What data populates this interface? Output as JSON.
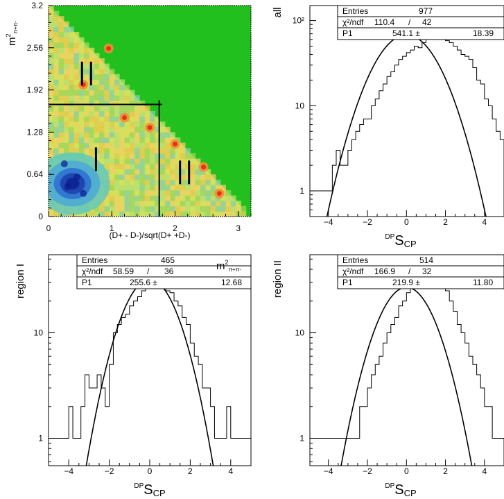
{
  "colors": {
    "heat_background": "#22c01e",
    "heat_low": "#0a1e8c",
    "heat_mid": "#5ec8c0",
    "heat_high": "#e83020",
    "axis": "#000000"
  },
  "chart_data": [
    {
      "id": "dalitz",
      "type": "heatmap",
      "title": "",
      "xlabel": "(D+ - D-)/sqrt(D+ +D-)",
      "ylabel": "m²π+π-",
      "xlim": [
        0,
        3.2
      ],
      "ylim": [
        0,
        3.2
      ],
      "x_ticks": [
        "0",
        "1",
        "2",
        "3"
      ],
      "y_ticks": [
        "0",
        "0.64",
        "1.28",
        "1.92",
        "2.56",
        "3.2"
      ],
      "region_boundary": {
        "x": 1.75,
        "y": 1.7
      },
      "region_markers": [
        {
          "label": "I",
          "x": 0.75,
          "y": 0.87
        },
        {
          "label": "II",
          "x": 0.6,
          "y": 2.17
        },
        {
          "label": "II",
          "x": 2.15,
          "y": 0.67
        }
      ],
      "hot_spots": [
        {
          "x": 0.3,
          "y": 0.45,
          "level": "low"
        },
        {
          "x": 0.45,
          "y": 0.6,
          "level": "low"
        },
        {
          "x": 0.25,
          "y": 0.8,
          "level": "low"
        },
        {
          "x": 0.55,
          "y": 0.35,
          "level": "low"
        },
        {
          "x": 0.95,
          "y": 2.55,
          "level": "high"
        },
        {
          "x": 0.55,
          "y": 2.0,
          "level": "high"
        },
        {
          "x": 1.2,
          "y": 1.5,
          "level": "high"
        },
        {
          "x": 2.45,
          "y": 0.75,
          "level": "high"
        },
        {
          "x": 2.0,
          "y": 1.1,
          "level": "high"
        },
        {
          "x": 1.6,
          "y": 1.35,
          "level": "high"
        },
        {
          "x": 2.7,
          "y": 0.35,
          "level": "high"
        }
      ]
    },
    {
      "id": "all",
      "type": "line",
      "title": "",
      "ylabel": "all",
      "xlabel_pre": "DP",
      "xlabel_main": "S",
      "xlabel_sub": "CP",
      "xlim": [
        -5,
        5
      ],
      "ylim": [
        0.5,
        150
      ],
      "log_y": true,
      "x_ticks": [
        -4,
        -2,
        0,
        2,
        4
      ],
      "y_ticks": [
        {
          "value": 1,
          "label": "1"
        },
        {
          "value": 10,
          "label": "10"
        },
        {
          "value": 100,
          "label": "10²"
        }
      ],
      "stats": {
        "entries_label": "Entries",
        "entries": "977",
        "chi_label": "χ²/ndf",
        "chi_value": "110.4",
        "slash": "/",
        "ndf": "42",
        "p1_label": "P1",
        "p1_value": "541.1 ±",
        "p1_err": "18.39"
      },
      "fit": {
        "peak": 68,
        "center": 0,
        "sigma": 1.3
      },
      "series": [
        {
          "bin_start": -5,
          "bin_width": 0.2,
          "values": [
            1,
            1,
            1,
            1,
            1,
            1,
            2,
            3,
            2,
            2,
            3,
            4,
            5,
            6,
            7,
            7,
            10,
            12,
            15,
            18,
            22,
            25,
            30,
            35,
            38,
            42,
            45,
            50,
            48,
            55,
            62,
            68,
            70,
            72,
            60,
            58,
            55,
            50,
            45,
            40,
            38,
            35,
            28,
            20,
            18,
            12,
            10,
            7,
            5,
            4
          ]
        }
      ]
    },
    {
      "id": "regionI",
      "type": "line",
      "title": "",
      "ylabel": "region I",
      "xlabel_pre": "DP",
      "xlabel_main": "S",
      "xlabel_sub": "CP",
      "xlim": [
        -5,
        5
      ],
      "ylim": [
        0.55,
        55
      ],
      "log_y": true,
      "x_ticks": [
        -4,
        -2,
        0,
        2,
        4
      ],
      "y_ticks": [
        {
          "value": 1,
          "label": "1"
        },
        {
          "value": 10,
          "label": "10"
        }
      ],
      "overlay_label": "m²π+π-",
      "stats": {
        "entries_label": "Entries",
        "entries": "465",
        "chi_label": "χ²/ndf",
        "chi_value": "58.59",
        "slash": "/",
        "ndf": "36",
        "p1_label": "P1",
        "p1_value": "255.6 ±",
        "p1_err": "12.68"
      },
      "fit": {
        "peak": 32,
        "center": 0,
        "sigma": 1.1
      },
      "series": [
        {
          "bin_start": -5,
          "bin_width": 0.2,
          "values": [
            1,
            1,
            1,
            1,
            1,
            2,
            1,
            1,
            2,
            4,
            3,
            3,
            4,
            3,
            2,
            5,
            10,
            12,
            14,
            15,
            18,
            20,
            22,
            25,
            28,
            30,
            32,
            30,
            28,
            25,
            24,
            20,
            18,
            14,
            12,
            8,
            6,
            5,
            3,
            3,
            2,
            1,
            1,
            1,
            2,
            1,
            1,
            1,
            1,
            1
          ]
        }
      ]
    },
    {
      "id": "regionII",
      "type": "line",
      "title": "",
      "ylabel": "region II",
      "xlabel_pre": "DP",
      "xlabel_main": "S",
      "xlabel_sub": "CP",
      "xlim": [
        -5,
        5
      ],
      "ylim": [
        0.55,
        55
      ],
      "log_y": true,
      "x_ticks": [
        -4,
        -2,
        0,
        2,
        4
      ],
      "y_ticks": [
        {
          "value": 1,
          "label": "1"
        },
        {
          "value": 10,
          "label": "10"
        }
      ],
      "stats": {
        "entries_label": "Entries",
        "entries": "514",
        "chi_label": "χ²/ndf",
        "chi_value": "166.9",
        "slash": "/",
        "ndf": "32",
        "p1_label": "P1",
        "p1_value": "219.9 ±",
        "p1_err": "11.80"
      },
      "fit": {
        "peak": 27,
        "center": 0,
        "sigma": 1.2
      },
      "series": [
        {
          "bin_start": -5,
          "bin_width": 0.2,
          "values": [
            1,
            1,
            1,
            1,
            1,
            1,
            1,
            1,
            1,
            1,
            1,
            1,
            1,
            2,
            2,
            3,
            4,
            5,
            6,
            8,
            10,
            12,
            14,
            18,
            20,
            24,
            28,
            32,
            36,
            38,
            40,
            37,
            33,
            30,
            28,
            25,
            20,
            16,
            12,
            10,
            8,
            6,
            5,
            4,
            3,
            2,
            2,
            1,
            1,
            1
          ]
        }
      ]
    }
  ]
}
